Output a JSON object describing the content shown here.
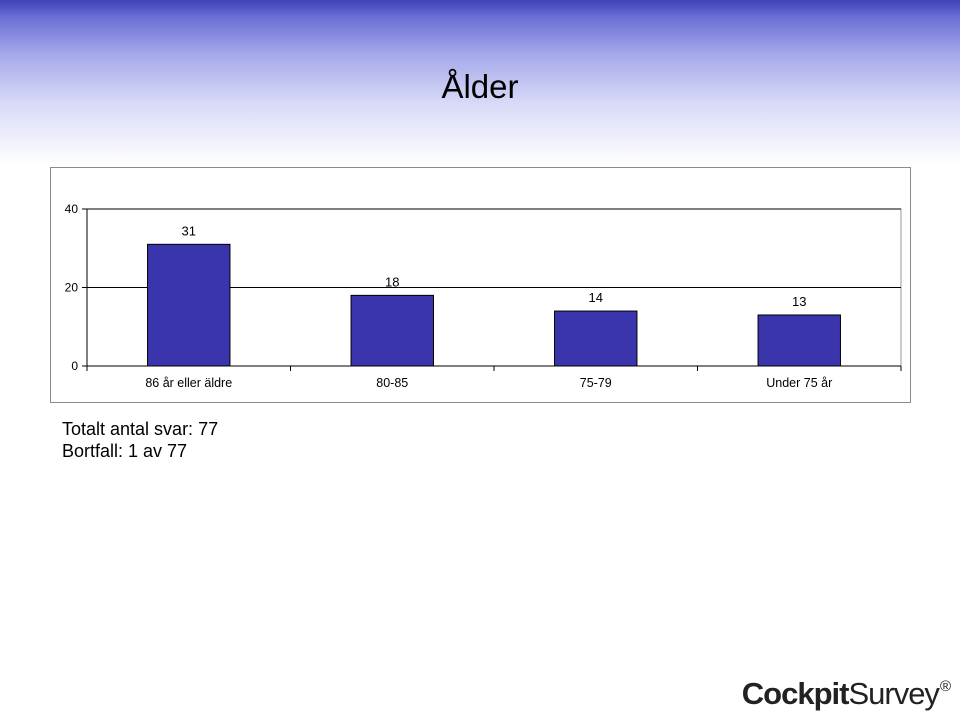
{
  "page": {
    "title": "Ålder",
    "total_responses": "Totalt antal svar: 77",
    "dropouts": "Bortfall: 1 av 77"
  },
  "brand": {
    "strong": "Cockpit",
    "light": "Survey",
    "mark": "®"
  },
  "colors": {
    "bar_fill": "#3b35ad",
    "bar_stroke": "#000000",
    "header_gradient_top": "#3f42b8"
  },
  "chart_data": {
    "type": "bar",
    "title": "",
    "xlabel": "",
    "ylabel": "",
    "categories": [
      "86 år eller äldre",
      "80-85",
      "75-79",
      "Under 75 år"
    ],
    "values": [
      31,
      18,
      14,
      13
    ],
    "data_labels": [
      "31",
      "18",
      "14",
      "13"
    ],
    "ylim": [
      0,
      40
    ],
    "yticks": [
      0,
      20,
      40
    ],
    "grid": true,
    "legend": "none"
  }
}
